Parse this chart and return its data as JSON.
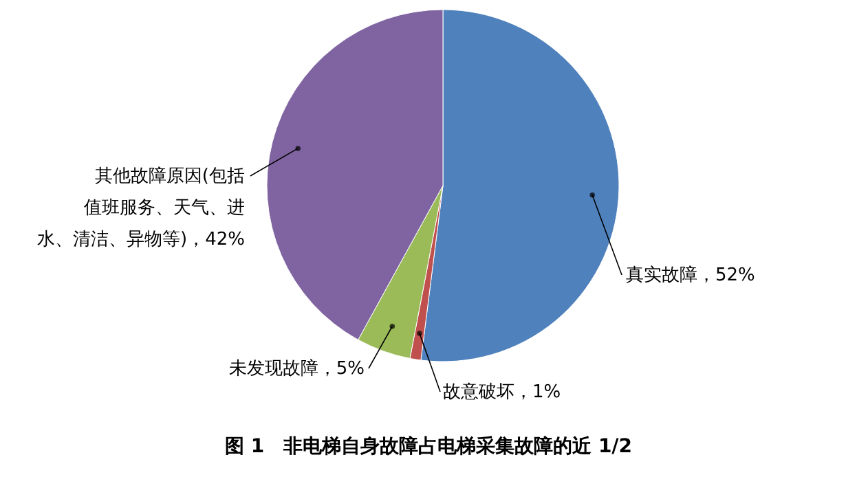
{
  "chart_data": {
    "type": "pie",
    "title": "图 1　非电梯自身故障占电梯采集故障的近 1/2",
    "categories": [
      "真实故障",
      "故意破坏",
      "未发现故障",
      "其他故障原因(包括值班服务、天气、进水、清洁、异物等)"
    ],
    "values": [
      52,
      1,
      5,
      42
    ],
    "colors": [
      "#4f81bd",
      "#c0504d",
      "#9bbb59",
      "#8064a2"
    ],
    "value_labels": [
      "，52%",
      "，1%",
      "，5%",
      "，42%"
    ]
  }
}
